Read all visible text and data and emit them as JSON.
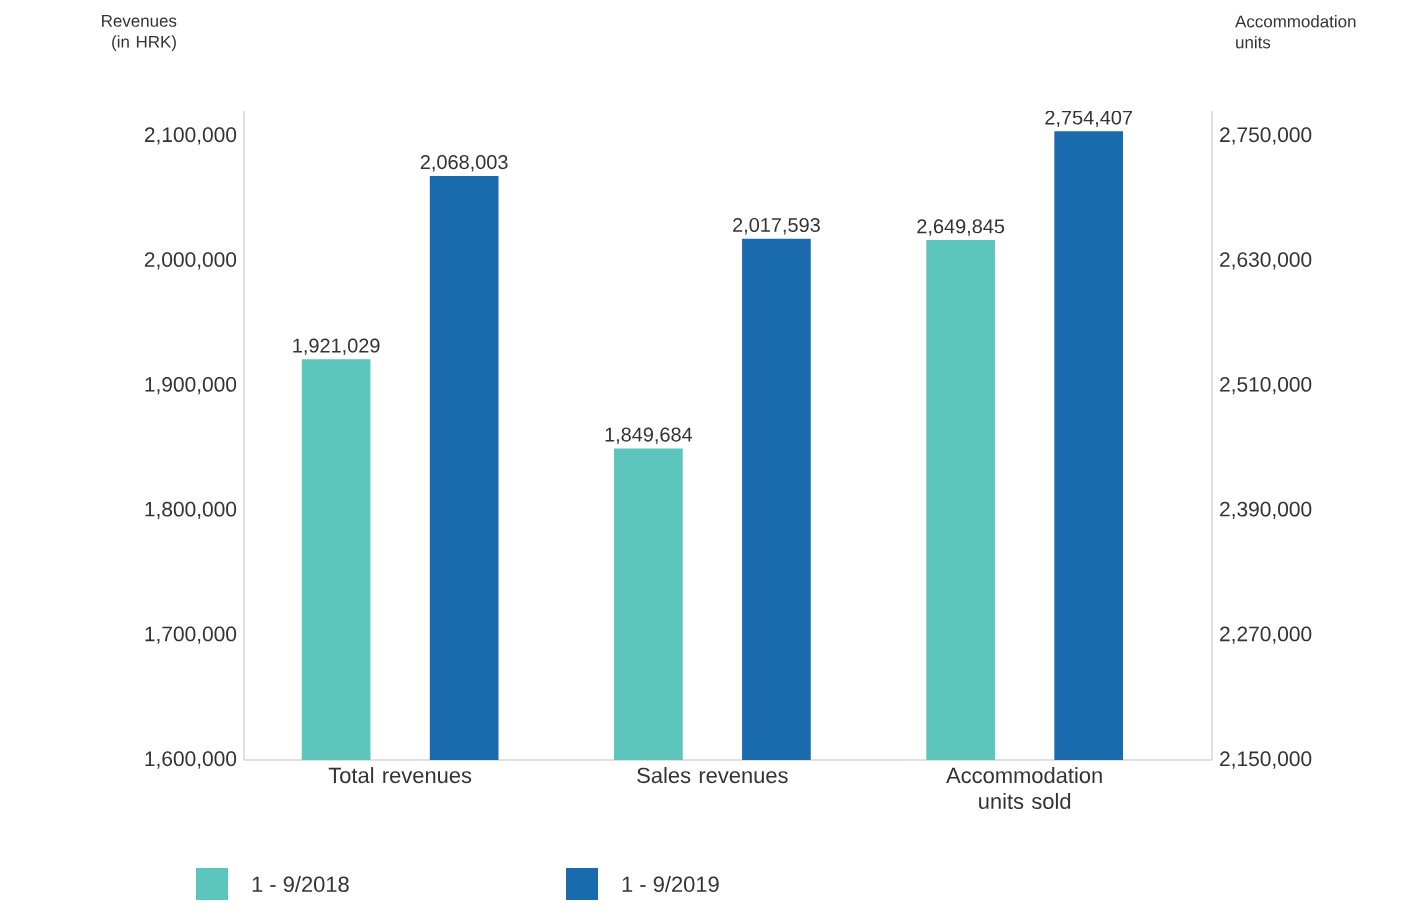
{
  "chart_data": {
    "type": "bar",
    "categories": [
      "Total revenues",
      "Sales revenues",
      "Accommodation units sold"
    ],
    "ylabel": "Revenues (in HRK)",
    "y2label": "Accommodation units",
    "series": [
      {
        "name": "1 - 9/2018",
        "color": "#5cc5bc",
        "values": [
          1921029,
          1849684,
          null
        ],
        "value_labels": [
          "1,921,029",
          "1,849,684",
          null
        ]
      },
      {
        "name": "1 - 9/2019",
        "color": "#1a6aae",
        "values": [
          2068003,
          2017593,
          null
        ],
        "value_labels": [
          "2,068,003",
          "2,017,593",
          null
        ]
      },
      {
        "color": "#5cc5bc",
        "axis": "y2",
        "values": [
          null,
          null,
          2649845
        ],
        "value_labels": [
          null,
          null,
          "2,649,845"
        ]
      },
      {
        "color": "#1a6aae",
        "axis": "y2",
        "values": [
          null,
          null,
          2754407
        ],
        "value_labels": [
          null,
          null,
          "2,754,407"
        ]
      }
    ],
    "ylim": [
      1600000,
      2120000
    ],
    "yticks": [
      {
        "value": 1600000,
        "label": "1,600,000"
      },
      {
        "value": 1700000,
        "label": "1,700,000"
      },
      {
        "value": 1800000,
        "label": "1,800,000"
      },
      {
        "value": 1900000,
        "label": "1,900,000"
      },
      {
        "value": 2000000,
        "label": "2,000,000"
      },
      {
        "value": 2100000,
        "label": "2,100,000"
      }
    ],
    "y2lim": [
      2150000,
      2774000
    ],
    "y2ticks": [
      {
        "value": 2150000,
        "label": "2,150,000"
      },
      {
        "value": 2270000,
        "label": "2,270,000"
      },
      {
        "value": 2390000,
        "label": "2,390,000"
      },
      {
        "value": 2510000,
        "label": "2,510,000"
      },
      {
        "value": 2630000,
        "label": "2,630,000"
      },
      {
        "value": 2750000,
        "label": "2,750,000"
      }
    ],
    "grid": false,
    "legend": "bottom"
  }
}
